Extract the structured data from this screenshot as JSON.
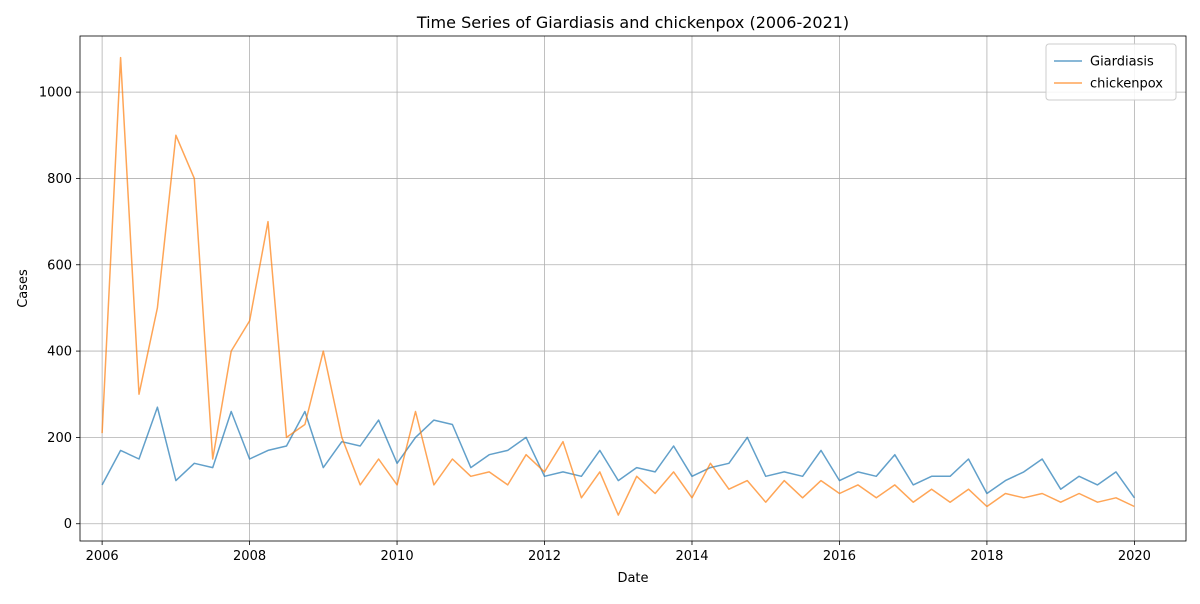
{
  "chart_data": {
    "type": "line",
    "title": "Time Series of Giardiasis and chickenpox (2006-2021)",
    "xlabel": "Date",
    "ylabel": "Cases",
    "xlim": [
      2005.7,
      2020.7
    ],
    "ylim": [
      -40,
      1130
    ],
    "x_ticks": [
      2006,
      2008,
      2010,
      2012,
      2014,
      2016,
      2018,
      2020
    ],
    "x_tick_labels": [
      "2006",
      "2008",
      "2010",
      "2012",
      "2014",
      "2016",
      "2018",
      "2020"
    ],
    "y_ticks": [
      0,
      200,
      400,
      600,
      800,
      1000
    ],
    "y_tick_labels": [
      "0",
      "200",
      "400",
      "600",
      "800",
      "1000"
    ],
    "grid": true,
    "legend_position": "top-right",
    "series": [
      {
        "name": "Giardiasis",
        "color": "#1f77b4",
        "x": [
          2006.0,
          2006.25,
          2006.5,
          2006.75,
          2007.0,
          2007.25,
          2007.5,
          2007.75,
          2008.0,
          2008.25,
          2008.5,
          2008.75,
          2009.0,
          2009.25,
          2009.5,
          2009.75,
          2010.0,
          2010.25,
          2010.5,
          2010.75,
          2011.0,
          2011.25,
          2011.5,
          2011.75,
          2012.0,
          2012.25,
          2012.5,
          2012.75,
          2013.0,
          2013.25,
          2013.5,
          2013.75,
          2014.0,
          2014.25,
          2014.5,
          2014.75,
          2015.0,
          2015.25,
          2015.5,
          2015.75,
          2016.0,
          2016.25,
          2016.5,
          2016.75,
          2017.0,
          2017.25,
          2017.5,
          2017.75,
          2018.0,
          2018.25,
          2018.5,
          2018.75,
          2019.0,
          2019.25,
          2019.5,
          2019.75,
          2020.0
        ],
        "values": [
          90,
          170,
          150,
          270,
          100,
          140,
          130,
          260,
          150,
          170,
          180,
          260,
          130,
          190,
          180,
          240,
          140,
          200,
          240,
          230,
          130,
          160,
          170,
          200,
          110,
          120,
          110,
          170,
          100,
          130,
          120,
          180,
          110,
          130,
          140,
          200,
          110,
          120,
          110,
          170,
          100,
          120,
          110,
          160,
          90,
          110,
          110,
          150,
          70,
          100,
          120,
          150,
          80,
          110,
          90,
          120,
          60
        ]
      },
      {
        "name": "chickenpox",
        "color": "#ff7f0e",
        "x": [
          2006.0,
          2006.25,
          2006.5,
          2006.75,
          2007.0,
          2007.25,
          2007.5,
          2007.75,
          2008.0,
          2008.25,
          2008.5,
          2008.75,
          2009.0,
          2009.25,
          2009.5,
          2009.75,
          2010.0,
          2010.25,
          2010.5,
          2010.75,
          2011.0,
          2011.25,
          2011.5,
          2011.75,
          2012.0,
          2012.25,
          2012.5,
          2012.75,
          2013.0,
          2013.25,
          2013.5,
          2013.75,
          2014.0,
          2014.25,
          2014.5,
          2014.75,
          2015.0,
          2015.25,
          2015.5,
          2015.75,
          2016.0,
          2016.25,
          2016.5,
          2016.75,
          2017.0,
          2017.25,
          2017.5,
          2017.75,
          2018.0,
          2018.25,
          2018.5,
          2018.75,
          2019.0,
          2019.25,
          2019.5,
          2019.75,
          2020.0
        ],
        "values": [
          210,
          1080,
          300,
          500,
          900,
          800,
          150,
          400,
          470,
          700,
          200,
          230,
          400,
          200,
          90,
          150,
          90,
          260,
          90,
          150,
          110,
          120,
          90,
          160,
          120,
          190,
          60,
          120,
          20,
          110,
          70,
          120,
          60,
          140,
          80,
          100,
          50,
          100,
          60,
          100,
          70,
          90,
          60,
          90,
          50,
          80,
          50,
          80,
          40,
          70,
          60,
          70,
          50,
          70,
          50,
          60,
          40
        ]
      }
    ]
  }
}
